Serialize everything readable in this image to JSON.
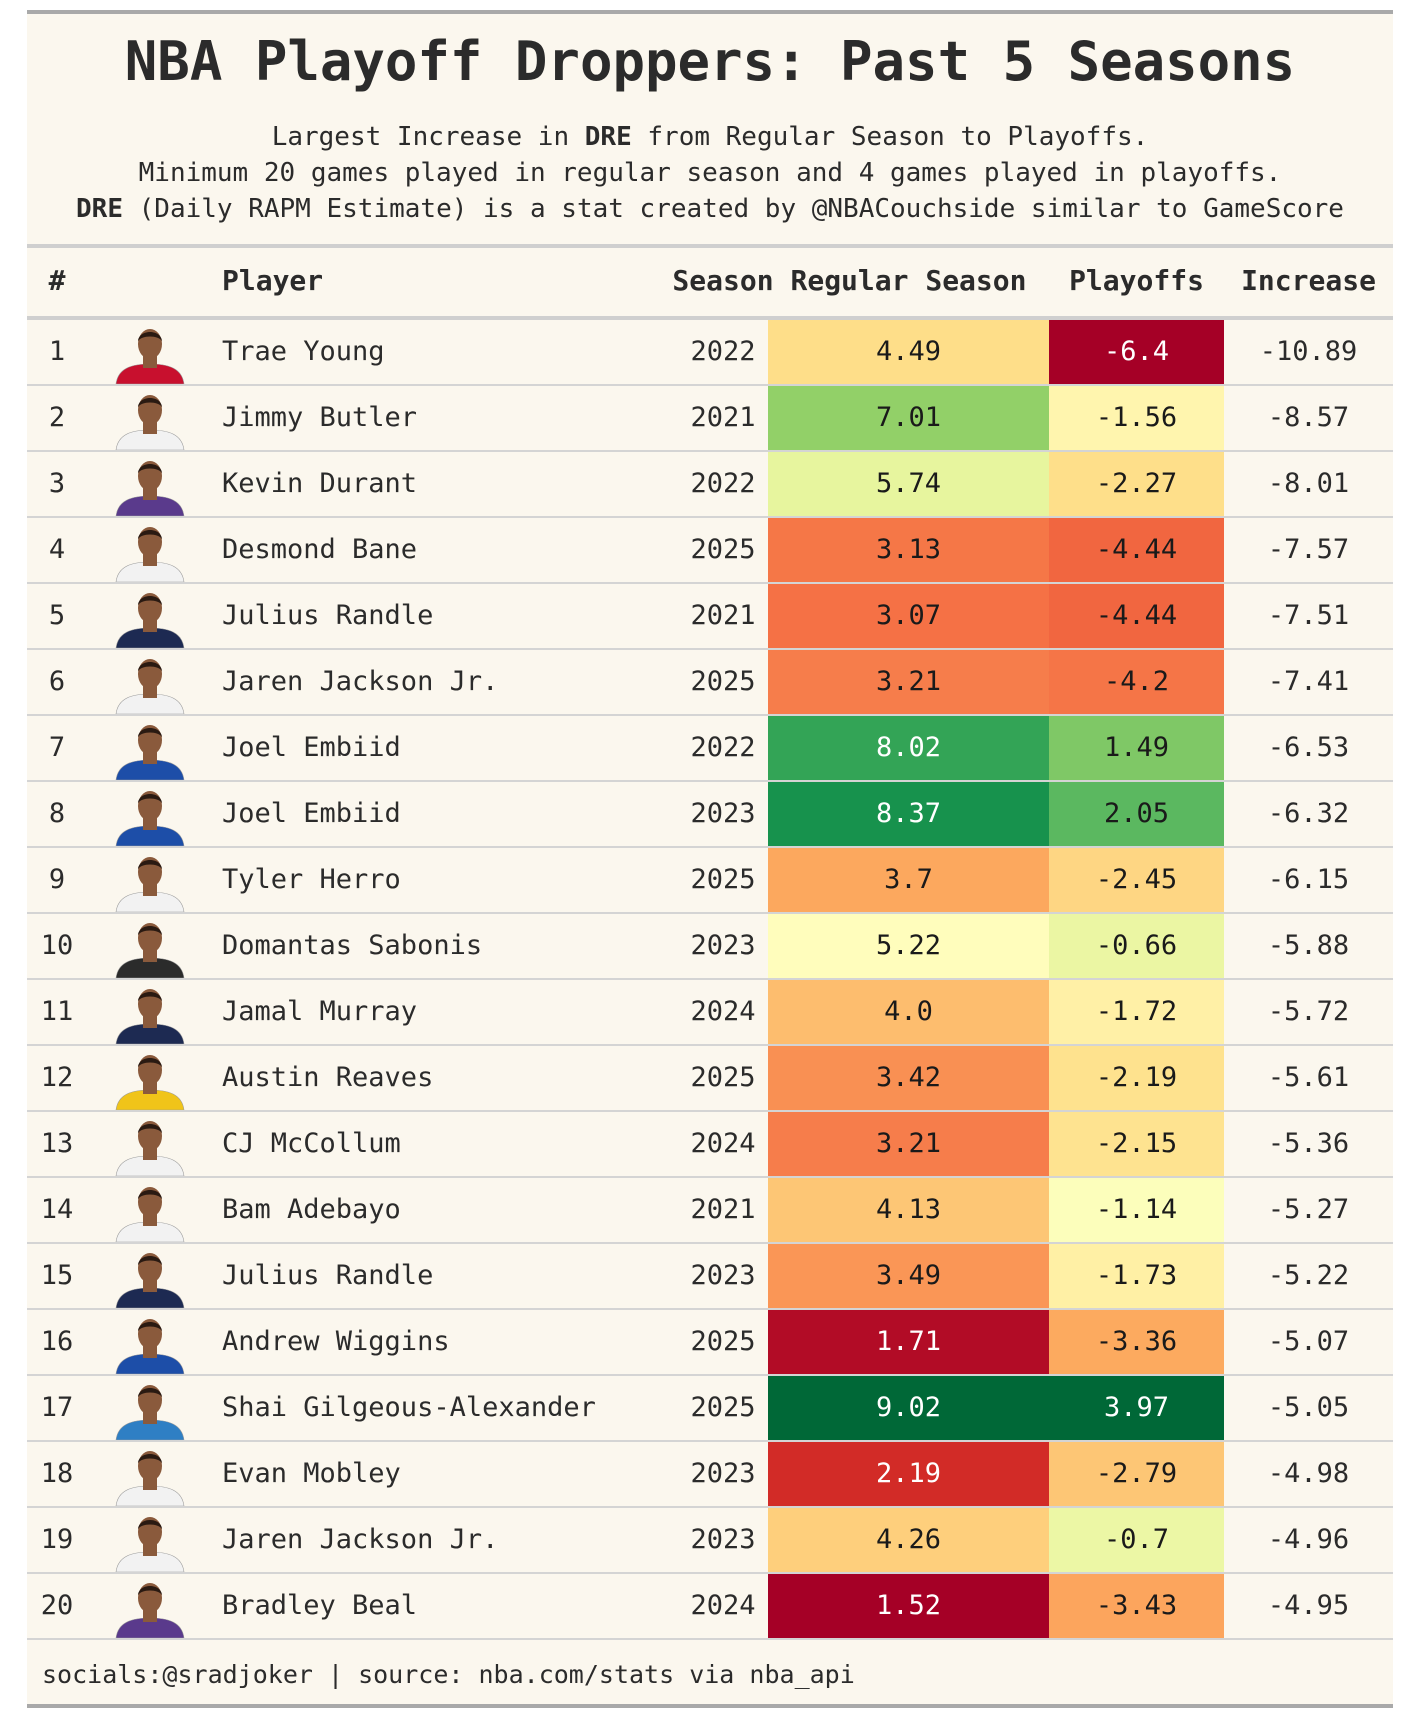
{
  "header": {
    "title": "NBA Playoff Droppers: Past 5 Seasons",
    "subtitle_lines": [
      {
        "pre": "Largest Increase in ",
        "bold": "DRE",
        "post": " from Regular Season to Playoffs."
      },
      {
        "pre": "",
        "bold": "",
        "post": "Minimum 20 games played in regular season and 4 games played in playoffs."
      },
      {
        "pre": "",
        "bold": "DRE",
        "post": " (Daily RAPM Estimate) is a stat created by @NBACouchside similar to GameScore"
      }
    ]
  },
  "columns": {
    "rank": "#",
    "player": "Player",
    "season": "Season",
    "regular": "Regular Season",
    "playoffs": "Playoffs",
    "increase": "Increase"
  },
  "chart_data": {
    "type": "table",
    "columns": [
      "#",
      "Player",
      "Season",
      "Regular Season",
      "Playoffs",
      "Increase"
    ],
    "rows": [
      {
        "rank": "1",
        "player": "Trae Young",
        "season": "2022",
        "regular": "4.49",
        "playoffs": "-6.4",
        "increase": "-10.89",
        "jersey": "#c8102e"
      },
      {
        "rank": "2",
        "player": "Jimmy Butler",
        "season": "2021",
        "regular": "7.01",
        "playoffs": "-1.56",
        "increase": "-8.57",
        "jersey": "#f2f2f2"
      },
      {
        "rank": "3",
        "player": "Kevin Durant",
        "season": "2022",
        "regular": "5.74",
        "playoffs": "-2.27",
        "increase": "-8.01",
        "jersey": "#5a3a8c"
      },
      {
        "rank": "4",
        "player": "Desmond Bane",
        "season": "2025",
        "regular": "3.13",
        "playoffs": "-4.44",
        "increase": "-7.57",
        "jersey": "#f2f2f2"
      },
      {
        "rank": "5",
        "player": "Julius Randle",
        "season": "2021",
        "regular": "3.07",
        "playoffs": "-4.44",
        "increase": "-7.51",
        "jersey": "#1d2a52"
      },
      {
        "rank": "6",
        "player": "Jaren Jackson Jr.",
        "season": "2025",
        "regular": "3.21",
        "playoffs": "-4.2",
        "increase": "-7.41",
        "jersey": "#f2f2f2"
      },
      {
        "rank": "7",
        "player": "Joel Embiid",
        "season": "2022",
        "regular": "8.02",
        "playoffs": "1.49",
        "increase": "-6.53",
        "jersey": "#1d4ea8"
      },
      {
        "rank": "8",
        "player": "Joel Embiid",
        "season": "2023",
        "regular": "8.37",
        "playoffs": "2.05",
        "increase": "-6.32",
        "jersey": "#1d4ea8"
      },
      {
        "rank": "9",
        "player": "Tyler Herro",
        "season": "2025",
        "regular": "3.7",
        "playoffs": "-2.45",
        "increase": "-6.15",
        "jersey": "#f2f2f2"
      },
      {
        "rank": "10",
        "player": "Domantas Sabonis",
        "season": "2023",
        "regular": "5.22",
        "playoffs": "-0.66",
        "increase": "-5.88",
        "jersey": "#2b2b2b"
      },
      {
        "rank": "11",
        "player": "Jamal Murray",
        "season": "2024",
        "regular": "4.0",
        "playoffs": "-1.72",
        "increase": "-5.72",
        "jersey": "#1d2a52"
      },
      {
        "rank": "12",
        "player": "Austin Reaves",
        "season": "2025",
        "regular": "3.42",
        "playoffs": "-2.19",
        "increase": "-5.61",
        "jersey": "#f0c419"
      },
      {
        "rank": "13",
        "player": "CJ McCollum",
        "season": "2024",
        "regular": "3.21",
        "playoffs": "-2.15",
        "increase": "-5.36",
        "jersey": "#f2f2f2"
      },
      {
        "rank": "14",
        "player": "Bam Adebayo",
        "season": "2021",
        "regular": "4.13",
        "playoffs": "-1.14",
        "increase": "-5.27",
        "jersey": "#f2f2f2"
      },
      {
        "rank": "15",
        "player": "Julius Randle",
        "season": "2023",
        "regular": "3.49",
        "playoffs": "-1.73",
        "increase": "-5.22",
        "jersey": "#1d2a52"
      },
      {
        "rank": "16",
        "player": "Andrew Wiggins",
        "season": "2025",
        "regular": "1.71",
        "playoffs": "-3.36",
        "increase": "-5.07",
        "jersey": "#1d4ea8"
      },
      {
        "rank": "17",
        "player": "Shai Gilgeous-Alexander",
        "season": "2025",
        "regular": "9.02",
        "playoffs": "3.97",
        "increase": "-5.05",
        "jersey": "#2f7fc4"
      },
      {
        "rank": "18",
        "player": "Evan Mobley",
        "season": "2023",
        "regular": "2.19",
        "playoffs": "-2.79",
        "increase": "-4.98",
        "jersey": "#f2f2f2"
      },
      {
        "rank": "19",
        "player": "Jaren Jackson Jr.",
        "season": "2023",
        "regular": "4.26",
        "playoffs": "-0.7",
        "increase": "-4.96",
        "jersey": "#f2f2f2"
      },
      {
        "rank": "20",
        "player": "Bradley Beal",
        "season": "2024",
        "regular": "1.52",
        "playoffs": "-3.43",
        "increase": "-4.95",
        "jersey": "#5a3a8c"
      }
    ],
    "regular_scale": [
      1.52,
      9.02
    ],
    "playoffs_scale": [
      -6.4,
      3.97
    ],
    "colormap": "RdYlGn"
  },
  "footer": {
    "text": "socials:@sradjoker | source: nba.com/stats via nba_api"
  }
}
